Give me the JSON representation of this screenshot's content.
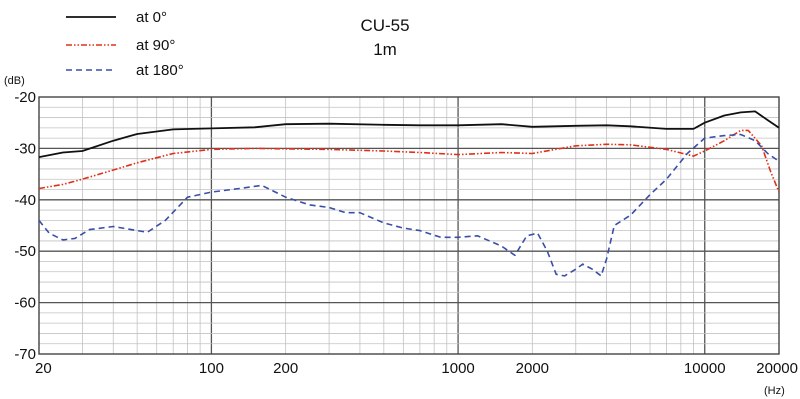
{
  "chart_data": {
    "type": "line",
    "title": "CU-55",
    "subtitle": "1m",
    "ylabel": "(dB)",
    "xlabel": "(Hz)",
    "xscale": "log",
    "xlim": [
      20,
      20000
    ],
    "ylim": [
      -70,
      -20
    ],
    "grid": true,
    "legend_position": "top-left",
    "x_ticks": [
      {
        "value": 20,
        "label": "20"
      },
      {
        "value": 100,
        "label": "100"
      },
      {
        "value": 200,
        "label": "200"
      },
      {
        "value": 1000,
        "label": "1000"
      },
      {
        "value": 2000,
        "label": "2000"
      },
      {
        "value": 10000,
        "label": "10000"
      },
      {
        "value": 20000,
        "label": "20000"
      }
    ],
    "y_ticks": [
      {
        "value": -20,
        "label": "-20"
      },
      {
        "value": -30,
        "label": "-30"
      },
      {
        "value": -40,
        "label": "-40"
      },
      {
        "value": -50,
        "label": "-50"
      },
      {
        "value": -60,
        "label": "-60"
      },
      {
        "value": -70,
        "label": "-70"
      }
    ],
    "series": [
      {
        "name": "at 0°",
        "color": "#111111",
        "style": "solid",
        "points": [
          [
            20,
            -31.7
          ],
          [
            25,
            -30.8
          ],
          [
            30,
            -30.5
          ],
          [
            40,
            -28.5
          ],
          [
            50,
            -27.2
          ],
          [
            70,
            -26.3
          ],
          [
            100,
            -26.1
          ],
          [
            150,
            -25.9
          ],
          [
            200,
            -25.3
          ],
          [
            300,
            -25.2
          ],
          [
            500,
            -25.4
          ],
          [
            700,
            -25.5
          ],
          [
            1000,
            -25.5
          ],
          [
            1500,
            -25.3
          ],
          [
            2000,
            -25.8
          ],
          [
            3000,
            -25.6
          ],
          [
            4000,
            -25.5
          ],
          [
            5000,
            -25.7
          ],
          [
            7000,
            -26.2
          ],
          [
            9000,
            -26.2
          ],
          [
            10000,
            -25.0
          ],
          [
            12000,
            -23.6
          ],
          [
            14000,
            -23.0
          ],
          [
            16000,
            -22.8
          ],
          [
            18000,
            -24.5
          ],
          [
            20000,
            -26.0
          ]
        ]
      },
      {
        "name": "at 90°",
        "color": "#e03018",
        "style": "dash-dot-dot",
        "points": [
          [
            20,
            -37.8
          ],
          [
            25,
            -37.0
          ],
          [
            30,
            -36.0
          ],
          [
            40,
            -34.2
          ],
          [
            50,
            -32.8
          ],
          [
            70,
            -31.0
          ],
          [
            100,
            -30.2
          ],
          [
            150,
            -30.0
          ],
          [
            200,
            -30.1
          ],
          [
            300,
            -30.2
          ],
          [
            500,
            -30.5
          ],
          [
            700,
            -30.8
          ],
          [
            1000,
            -31.2
          ],
          [
            1500,
            -30.8
          ],
          [
            2000,
            -31.0
          ],
          [
            3000,
            -29.5
          ],
          [
            4000,
            -29.2
          ],
          [
            5000,
            -29.3
          ],
          [
            7000,
            -30.2
          ],
          [
            9000,
            -31.5
          ],
          [
            10000,
            -30.5
          ],
          [
            12000,
            -28.5
          ],
          [
            14000,
            -26.5
          ],
          [
            15000,
            -26.5
          ],
          [
            17000,
            -29.5
          ],
          [
            18500,
            -34.5
          ],
          [
            20000,
            -38.5
          ]
        ]
      },
      {
        "name": "at 180°",
        "color": "#3a4fa8",
        "style": "dashed",
        "points": [
          [
            20,
            -44.0
          ],
          [
            22,
            -46.5
          ],
          [
            25,
            -47.8
          ],
          [
            28,
            -47.5
          ],
          [
            32,
            -45.8
          ],
          [
            40,
            -45.2
          ],
          [
            50,
            -46.0
          ],
          [
            55,
            -46.3
          ],
          [
            65,
            -44.0
          ],
          [
            80,
            -39.5
          ],
          [
            100,
            -38.5
          ],
          [
            130,
            -37.8
          ],
          [
            160,
            -37.2
          ],
          [
            200,
            -39.5
          ],
          [
            250,
            -41.0
          ],
          [
            300,
            -41.5
          ],
          [
            350,
            -42.5
          ],
          [
            400,
            -42.5
          ],
          [
            500,
            -44.5
          ],
          [
            600,
            -45.5
          ],
          [
            700,
            -46.0
          ],
          [
            850,
            -47.3
          ],
          [
            1000,
            -47.3
          ],
          [
            1200,
            -47.0
          ],
          [
            1500,
            -49.0
          ],
          [
            1700,
            -50.8
          ],
          [
            1900,
            -47.0
          ],
          [
            2100,
            -46.5
          ],
          [
            2300,
            -50.0
          ],
          [
            2500,
            -54.5
          ],
          [
            2700,
            -54.8
          ],
          [
            3000,
            -53.5
          ],
          [
            3200,
            -52.5
          ],
          [
            3500,
            -53.5
          ],
          [
            3800,
            -54.8
          ],
          [
            4000,
            -51.5
          ],
          [
            4300,
            -45.0
          ],
          [
            5000,
            -43.0
          ],
          [
            6000,
            -39.0
          ],
          [
            7000,
            -36.0
          ],
          [
            8500,
            -31.0
          ],
          [
            10000,
            -28.0
          ],
          [
            12000,
            -27.5
          ],
          [
            14000,
            -27.3
          ],
          [
            16000,
            -28.5
          ],
          [
            18000,
            -31.0
          ],
          [
            20000,
            -32.5
          ]
        ]
      }
    ]
  }
}
